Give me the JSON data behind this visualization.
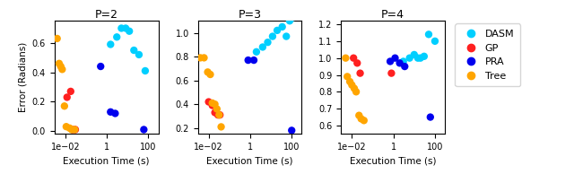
{
  "panels": [
    {
      "title": "P=2",
      "ylabel": "Error (Radians)",
      "ylim": [
        -0.02,
        0.75
      ],
      "yticks": [
        0.0,
        0.2,
        0.4,
        0.6
      ],
      "xlim": [
        0.003,
        300.0
      ],
      "DASM": {
        "x": [
          1.5,
          3.0,
          5.0,
          8.0,
          12.0,
          20.0,
          35.0,
          70.0
        ],
        "y": [
          0.59,
          0.64,
          0.7,
          0.7,
          0.68,
          0.55,
          0.52,
          0.41
        ]
      },
      "GP": {
        "x": [
          0.012,
          0.018,
          0.022,
          0.03
        ],
        "y": [
          0.23,
          0.27,
          0.01,
          0.01
        ]
      },
      "PRA": {
        "x": [
          0.5,
          1.5,
          2.5,
          60.0
        ],
        "y": [
          0.44,
          0.13,
          0.12,
          0.01
        ]
      },
      "Tree": {
        "x": [
          0.004,
          0.005,
          0.006,
          0.007,
          0.009,
          0.011,
          0.016,
          0.02,
          0.028
        ],
        "y": [
          0.63,
          0.46,
          0.44,
          0.42,
          0.17,
          0.03,
          0.02,
          0.01,
          0.01
        ]
      }
    },
    {
      "title": "P=3",
      "ylabel": "",
      "ylim": [
        0.15,
        1.1
      ],
      "yticks": [
        0.2,
        0.4,
        0.6,
        0.8,
        1.0
      ],
      "xlim": [
        0.003,
        300.0
      ],
      "DASM": {
        "x": [
          2.0,
          4.0,
          7.0,
          12.0,
          20.0,
          35.0,
          55.0,
          80.0,
          120.0
        ],
        "y": [
          0.84,
          0.88,
          0.92,
          0.97,
          1.02,
          1.05,
          0.97,
          1.1,
          1.13
        ]
      },
      "GP": {
        "x": [
          0.01,
          0.015,
          0.02,
          0.028,
          0.035
        ],
        "y": [
          0.42,
          0.39,
          0.33,
          0.31,
          0.31
        ]
      },
      "PRA": {
        "x": [
          0.8,
          1.5,
          100.0
        ],
        "y": [
          0.77,
          0.77,
          0.18
        ]
      },
      "Tree": {
        "x": [
          0.004,
          0.006,
          0.009,
          0.012,
          0.015,
          0.02,
          0.025,
          0.032,
          0.04
        ],
        "y": [
          0.79,
          0.79,
          0.67,
          0.65,
          0.41,
          0.4,
          0.36,
          0.31,
          0.21
        ]
      }
    },
    {
      "title": "P=4",
      "ylabel": "",
      "ylim": [
        0.55,
        1.22
      ],
      "yticks": [
        0.6,
        0.7,
        0.8,
        0.9,
        1.0,
        1.1,
        1.2
      ],
      "xlim": [
        0.003,
        300.0
      ],
      "DASM": {
        "x": [
          3.0,
          6.0,
          10.0,
          15.0,
          20.0,
          30.0,
          50.0,
          100.0
        ],
        "y": [
          0.98,
          1.0,
          1.02,
          1.0,
          1.0,
          1.01,
          1.14,
          1.1
        ]
      },
      "GP": {
        "x": [
          0.012,
          0.018,
          0.025,
          0.8
        ],
        "y": [
          1.0,
          0.97,
          0.91,
          0.91
        ]
      },
      "PRA": {
        "x": [
          0.7,
          1.2,
          2.0,
          3.5,
          60.0
        ],
        "y": [
          0.98,
          1.0,
          0.97,
          0.95,
          0.65
        ]
      },
      "Tree": {
        "x": [
          0.005,
          0.006,
          0.008,
          0.01,
          0.013,
          0.016,
          0.022,
          0.028,
          0.038
        ],
        "y": [
          1.0,
          0.89,
          0.86,
          0.84,
          0.82,
          0.8,
          0.66,
          0.64,
          0.63
        ]
      }
    }
  ],
  "colors": {
    "DASM": "#00CFFF",
    "GP": "#FF2020",
    "PRA": "#0000EE",
    "Tree": "#FFA500"
  },
  "markersize": 6,
  "xlabel": "Execution Time (s)",
  "legend_labels": [
    "DASM",
    "GP",
    "PRA",
    "Tree"
  ]
}
